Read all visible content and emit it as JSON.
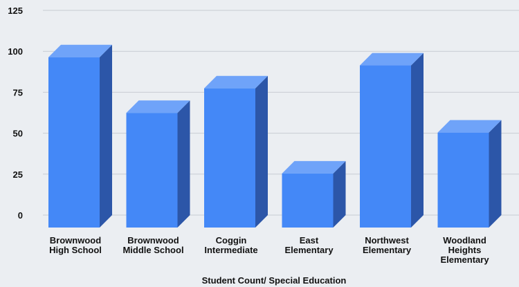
{
  "chart_data": {
    "type": "bar",
    "style": "3d-column",
    "categories": [
      [
        "Brownwood",
        "High School"
      ],
      [
        "Brownwood",
        "Middle School"
      ],
      [
        "Coggin",
        "Intermediate"
      ],
      [
        "East",
        "Elementary"
      ],
      [
        "Northwest",
        "Elementary"
      ],
      [
        "Woodland",
        "Heights",
        "Elementary"
      ]
    ],
    "values": [
      104,
      70,
      85,
      33,
      99,
      58
    ],
    "xlabel": "Student Count/ Special Education",
    "ylabel": "",
    "ylim": [
      0,
      125
    ],
    "yticks": [
      0,
      25,
      50,
      75,
      100,
      125
    ],
    "grid": true,
    "legend": "none",
    "colors": {
      "front": "#4488f7",
      "side": "#2c56a8",
      "top": "#6fa3f9",
      "grid": "#c7ccd3",
      "background": "#ebeef2"
    }
  }
}
